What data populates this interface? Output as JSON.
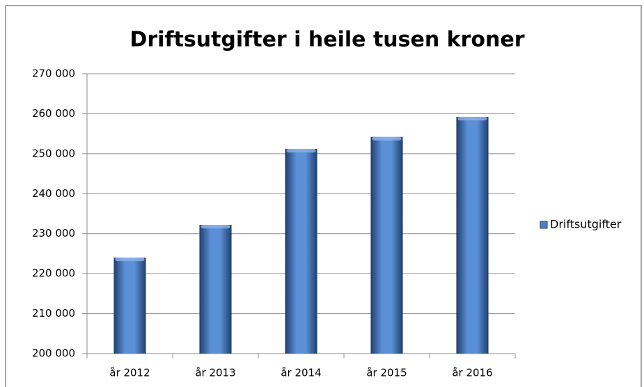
{
  "chart_data": {
    "type": "bar",
    "title": "Driftsutgifter i heile tusen kroner",
    "categories": [
      "år 2012",
      "år 2013",
      "år 2014",
      "år 2015",
      "år 2016"
    ],
    "series": [
      {
        "name": "Driftsutgifter",
        "color": "#4f81bd",
        "values": [
          224000,
          232200,
          251200,
          254200,
          259200
        ]
      }
    ],
    "ylim": [
      200000,
      270000
    ],
    "yticks": [
      {
        "value": 200000,
        "label": "200 000"
      },
      {
        "value": 210000,
        "label": "210 000"
      },
      {
        "value": 220000,
        "label": "220 000"
      },
      {
        "value": 230000,
        "label": "230 000"
      },
      {
        "value": 240000,
        "label": "240 000"
      },
      {
        "value": 250000,
        "label": "250 000"
      },
      {
        "value": 260000,
        "label": "260 000"
      },
      {
        "value": 270000,
        "label": "270 000"
      }
    ],
    "grid": true,
    "legend": "right"
  }
}
